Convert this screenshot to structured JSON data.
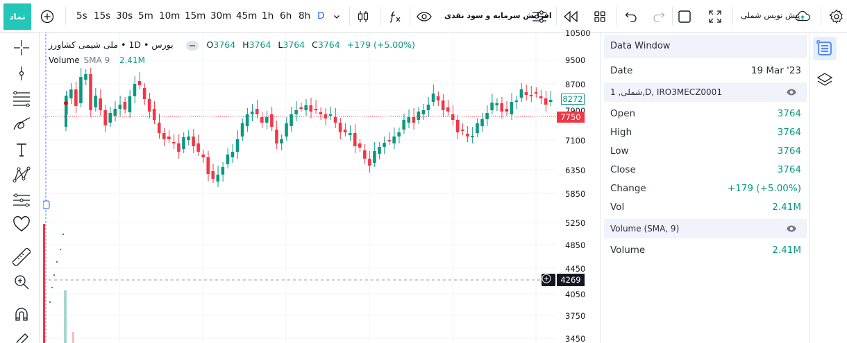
{
  "toolbar": {
    "symbol_label": "نماد",
    "intervals": [
      "5s",
      "15s",
      "30s",
      "5m",
      "10m",
      "15m",
      "30m",
      "45m",
      "1h",
      "6h",
      "8h",
      "D"
    ],
    "indicator_template_label": "افزایش سرمایه و سود نقدی",
    "layout_name": "پیش نویس شملی"
  },
  "legend": {
    "title": "بورس • 1D • ملی شیمی کشاورز",
    "o_label": "O",
    "o_val": "3764",
    "h_label": "H",
    "h_val": "3764",
    "l_label": "L",
    "l_val": "3764",
    "c_label": "C",
    "c_val": "3764",
    "change": "+179 (+5.00%)",
    "vol_name": "Volume",
    "vol_param": "SMA 9",
    "vol_val": "2.41M"
  },
  "price_axis": {
    "labels": [
      "10500",
      "9500",
      "8700",
      "7900",
      "7100",
      "6350",
      "5850",
      "5250",
      "4850",
      "4450",
      "4050",
      "3750",
      "3450"
    ],
    "last_price_tag": "8272",
    "red_tag": "7750",
    "crosshair_tag": "4269"
  },
  "data_window": {
    "title": "Data Window",
    "date_label": "Date",
    "date_value": "19 Mar '23",
    "symbol_section": "1 ,شملی,D, IRO3MECZ0001",
    "rows": [
      {
        "k": "Open",
        "v": "3764"
      },
      {
        "k": "High",
        "v": "3764"
      },
      {
        "k": "Low",
        "v": "3764"
      },
      {
        "k": "Close",
        "v": "3764"
      },
      {
        "k": "Change",
        "v": "+179 (+5.00%)"
      },
      {
        "k": "Vol",
        "v": "2.41M"
      }
    ],
    "vol_section": "Volume (SMA, 9)",
    "vol_row": {
      "k": "Volume",
      "v": "2.41M"
    }
  },
  "colors": {
    "up": "#089981",
    "down": "#f23645",
    "accent": "#2962ff",
    "symbol_bg": "#22c7b8"
  },
  "icons": [
    "plus-circle-icon",
    "candles-icon",
    "fx-icon",
    "eye-icon",
    "settings-sliders-icon",
    "replay-icon",
    "layout-grid-icon",
    "undo-icon",
    "redo-icon",
    "square-icon",
    "fullscreen-icon",
    "cloud-icon",
    "gear-icon",
    "crosshair-icon",
    "trendline-icon",
    "fib-icon",
    "brush-icon",
    "text-icon",
    "pattern-icon",
    "forecast-icon",
    "heart-icon",
    "ruler-icon",
    "zoom-icon",
    "magnet-icon",
    "pencil-icon",
    "data-window-icon",
    "layers-icon"
  ]
}
